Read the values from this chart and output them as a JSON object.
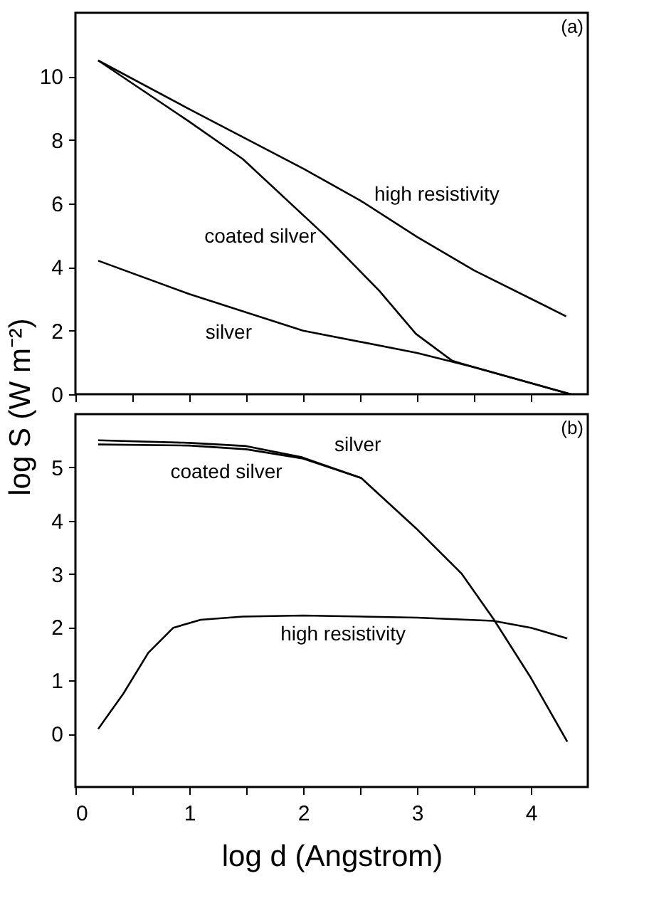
{
  "chart_data": [
    {
      "type": "line",
      "ylabel": "log S (W m⁻²)",
      "xlim": [
        0,
        4.5
      ],
      "ylim": [
        0,
        12
      ],
      "xticks": [
        {
          "value": 0,
          "label": null
        },
        {
          "value": 0.5,
          "label": null
        },
        {
          "value": 1,
          "label": null
        },
        {
          "value": 1.5,
          "label": null
        },
        {
          "value": 2,
          "label": null
        },
        {
          "value": 2.5,
          "label": null
        },
        {
          "value": 3,
          "label": null
        },
        {
          "value": 3.5,
          "label": null
        },
        {
          "value": 4,
          "label": null
        }
      ],
      "yticks": [
        0,
        2,
        4,
        6,
        8,
        10
      ],
      "tick_labels": "y",
      "grid": false,
      "line_style": "solid",
      "marker": "none",
      "series": [
        {
          "color": "#000000",
          "x": [
            0.2,
            1,
            2,
            2.5,
            3,
            3.5,
            4.31
          ],
          "values": [
            10.5,
            8.97,
            7.1,
            6.1,
            4.95,
            3.9,
            2.45
          ]
        },
        {
          "color": "#000000",
          "x": [
            0.2,
            0.99,
            1.47,
            2.19,
            2.67,
            2.99,
            3.31,
            3.5,
            4.35
          ],
          "values": [
            10.5,
            8.6,
            7.4,
            5.0,
            3.25,
            1.9,
            1.05,
            0.85,
            0
          ]
        },
        {
          "color": "#000000",
          "x": [
            0.2,
            1,
            2,
            3,
            3.5,
            4.35
          ],
          "values": [
            4.2,
            3.15,
            2.0,
            1.3,
            0.85,
            0
          ]
        }
      ],
      "annotations": [
        {
          "text": "high resistivity",
          "x": 2.5,
          "y": 6.1
        },
        {
          "text": "coated silver",
          "x": 2.19,
          "y": 5.0
        },
        {
          "text": "silver",
          "x": 1.6,
          "y": 2.46
        },
        "(a)"
      ]
    },
    {
      "type": "line",
      "xlabel": "log d (Angstrom)",
      "xlim": [
        0,
        4.5
      ],
      "ylim": [
        -1,
        6
      ],
      "xticks": [
        0,
        {
          "value": 0.5,
          "label": null
        },
        1,
        {
          "value": 1.5,
          "label": null
        },
        2,
        {
          "value": 2.5,
          "label": null
        },
        3,
        {
          "value": 3.5,
          "label": null
        },
        4
      ],
      "yticks": [
        0,
        1,
        2,
        3,
        4,
        5
      ],
      "grid": false,
      "line_style": "solid",
      "marker": "none",
      "series": [
        {
          "color": "#000000",
          "x": [
            0.2,
            1,
            1.5,
            1.99,
            2.51,
            2.99,
            3.39,
            3.67,
            4.0,
            4.32
          ],
          "values": [
            5.51,
            5.46,
            5.4,
            5.19,
            4.8,
            3.86,
            3.01,
            2.16,
            1.05,
            -0.15
          ]
        },
        {
          "color": "#000000",
          "x": [
            0.2,
            1,
            1.5,
            1.99,
            2.51
          ],
          "values": [
            5.43,
            5.41,
            5.34,
            5.17,
            4.8
          ]
        },
        {
          "color": "#000000",
          "x": [
            0.2,
            0.42,
            0.64,
            0.86,
            1.1,
            1.47,
            2,
            3,
            3.67,
            4,
            4.32
          ],
          "values": [
            0.09,
            0.75,
            1.52,
            1.99,
            2.14,
            2.2,
            2.22,
            2.18,
            2.12,
            1.99,
            1.79
          ]
        }
      ],
      "annotations": [
        {
          "text": "silver",
          "x": 2.1,
          "y": 5.15
        },
        {
          "text": "coated silver",
          "x": 1.35,
          "y": 5.33
        },
        {
          "text": "high resistivity",
          "x": 3.0,
          "y": 2.18
        },
        "(b)"
      ]
    }
  ]
}
